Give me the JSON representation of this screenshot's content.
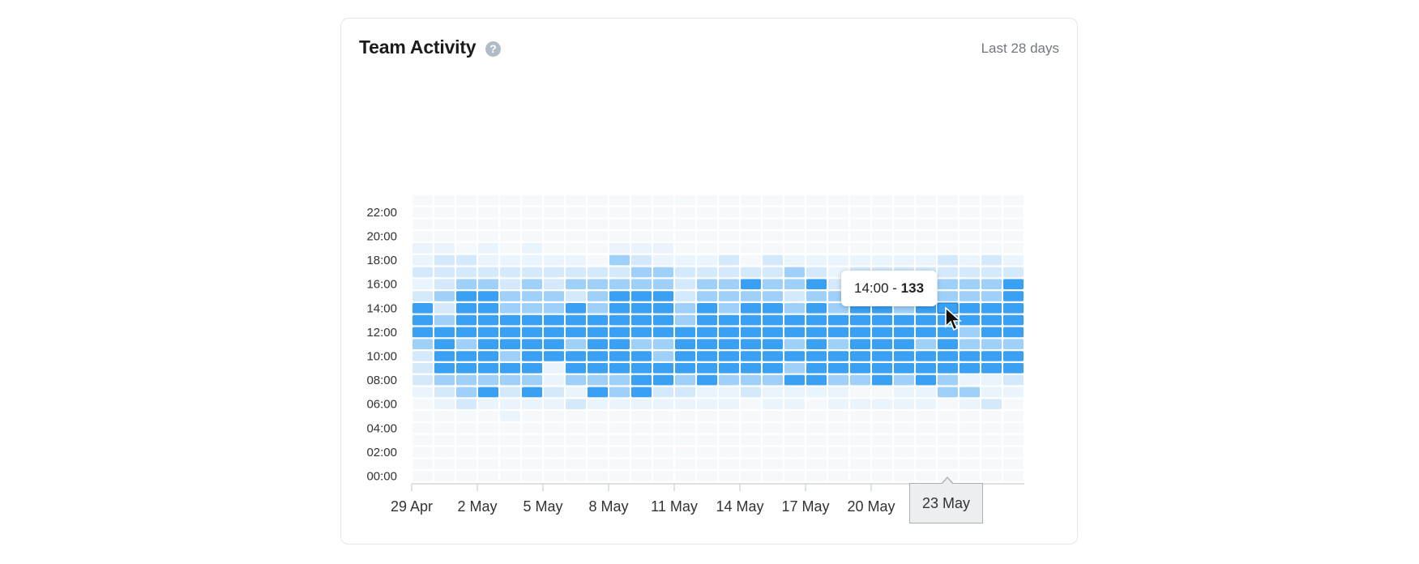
{
  "card": {
    "title": "Team Activity",
    "help_icon": "question-icon",
    "range_label": "Last 28 days"
  },
  "tooltip": {
    "hour_label": "14:00",
    "separator": " - ",
    "value": "133"
  },
  "hover_date": "23 May",
  "colors": {
    "accent": "#3aa0f4",
    "scale": [
      "#f6f9fc",
      "#eaf4fd",
      "#d4eafc",
      "#9fd0f9",
      "#3aa0f4"
    ],
    "axis": "#c9ced3"
  },
  "chart_data": {
    "type": "heatmap",
    "title": "",
    "y_ticks": [
      "00:00",
      "02:00",
      "04:00",
      "06:00",
      "08:00",
      "10:00",
      "12:00",
      "14:00",
      "16:00",
      "18:00",
      "20:00",
      "22:00"
    ],
    "x_ticks": [
      "29 Apr",
      "2 May",
      "5 May",
      "8 May",
      "11 May",
      "14 May",
      "17 May",
      "20 May"
    ],
    "columns": [
      "29 Apr",
      "30 Apr",
      "1 May",
      "2 May",
      "3 May",
      "4 May",
      "5 May",
      "6 May",
      "7 May",
      "8 May",
      "9 May",
      "10 May",
      "11 May",
      "12 May",
      "13 May",
      "14 May",
      "15 May",
      "16 May",
      "17 May",
      "18 May",
      "19 May",
      "20 May",
      "21 May",
      "22 May",
      "23 May",
      "24 May",
      "25 May",
      "26 May"
    ],
    "hours": [
      0,
      1,
      2,
      3,
      4,
      5,
      6,
      7,
      8,
      9,
      10,
      11,
      12,
      13,
      14,
      15,
      16,
      17,
      18,
      19,
      20,
      21,
      22,
      23
    ],
    "level_note": "levels 0-4 per hour (rows 00:00..23:00) per day",
    "levels": [
      "000000012223444212110000",
      "000000123444432322210000",
      "000000233443444432200000",
      "000000143444444432110000",
      "000001123434443322100000",
      "000000143444443332110000",
      "000000121144443322100000",
      "000000213443444232100000",
      "000000143444443332000000",
      "000000133444444432310000",
      "000000144443444433210000",
      "000000124433444433110000",
      "000000123444433222100000",
      "000000114444444332100000",
      "000000113444443332200000",
      "000000023444444342000000",
      "000000113444444332200000",
      "000000114343443233100000",
      "000000014444444342100000",
      "000000113443443321100000",
      "000000103444444332100000",
      "000000104444444332100000",
      "000000113444443332100000",
      "000000114443444342100000",
      "000000033444444332200000",
      "000000131443344332100000",
      "000000211443444332200000",
      "000000012443444442100000"
    ]
  }
}
